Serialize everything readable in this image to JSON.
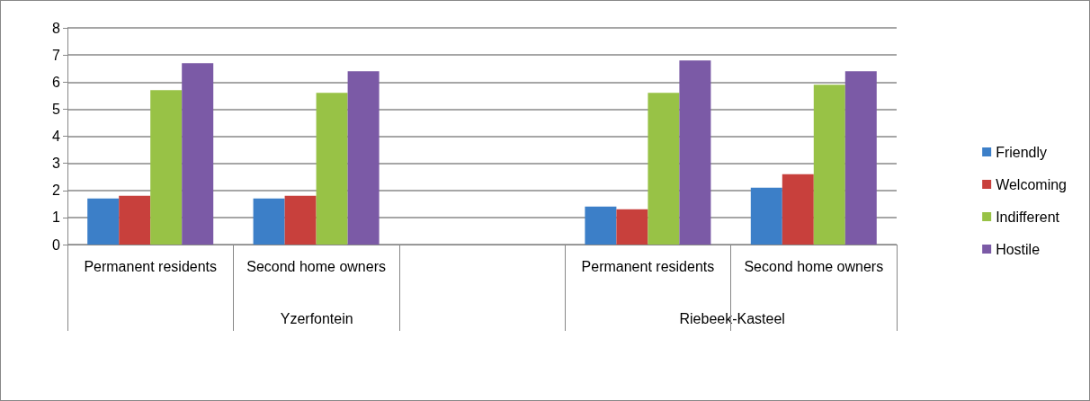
{
  "chart_data": {
    "type": "bar",
    "categories": [
      "Permanent residents",
      "Second home owners",
      null,
      "Permanent residents",
      "Second home owners"
    ],
    "series": [
      {
        "name": "Friendly",
        "color": "#3c7fc8",
        "values": [
          1.7,
          1.7,
          null,
          1.4,
          2.1
        ]
      },
      {
        "name": "Welcoming",
        "color": "#c8403c",
        "values": [
          1.8,
          1.8,
          null,
          1.3,
          2.6
        ]
      },
      {
        "name": "Indifferent",
        "color": "#98c246",
        "values": [
          5.7,
          5.6,
          null,
          5.6,
          5.9
        ]
      },
      {
        "name": "Hostile",
        "color": "#7b5aa6",
        "values": [
          6.7,
          6.4,
          null,
          6.8,
          6.4
        ]
      }
    ],
    "annotations": [
      "Yzerfontein",
      "Riebeek-Kasteel"
    ],
    "ylim": [
      0,
      8
    ],
    "yticks": [
      0,
      1,
      2,
      3,
      4,
      5,
      6,
      7,
      8
    ],
    "grid": "y",
    "legend": "right"
  }
}
